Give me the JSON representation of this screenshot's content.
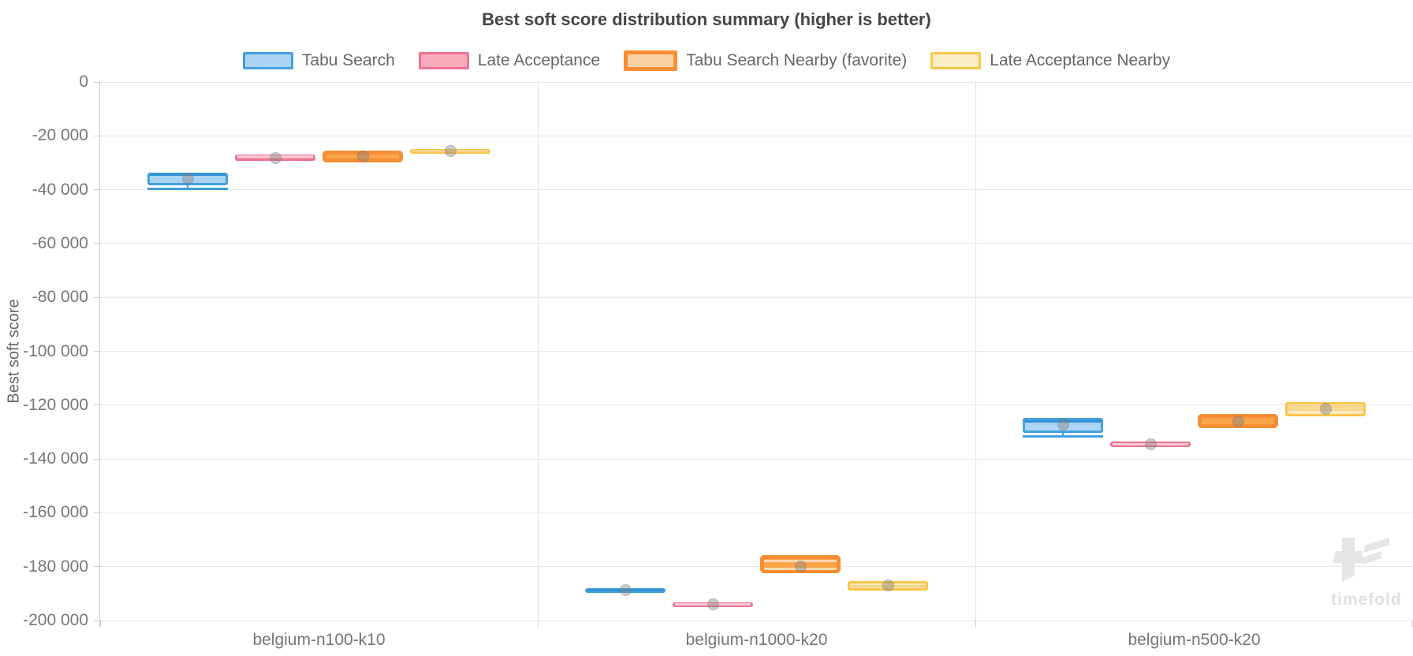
{
  "watermark": {
    "text": "timefold"
  },
  "chart_data": {
    "type": "box",
    "title": "Best soft score distribution summary (higher is better)",
    "ylabel": "Best soft score",
    "ylim": [
      -200000,
      0
    ],
    "grid": true,
    "legend_position": "top",
    "yticks": [
      {
        "value": 0,
        "label": "0"
      },
      {
        "value": -20000,
        "label": "-20 000"
      },
      {
        "value": -40000,
        "label": "-40 000"
      },
      {
        "value": -60000,
        "label": "-60 000"
      },
      {
        "value": -80000,
        "label": "-80 000"
      },
      {
        "value": -100000,
        "label": "-100 000"
      },
      {
        "value": -120000,
        "label": "-120 000"
      },
      {
        "value": -140000,
        "label": "-140 000"
      },
      {
        "value": -160000,
        "label": "-160 000"
      },
      {
        "value": -180000,
        "label": "-180 000"
      },
      {
        "value": -200000,
        "label": "-200 000"
      }
    ],
    "categories": [
      "belgium-n100-k10",
      "belgium-n1000-k20",
      "belgium-n500-k20"
    ],
    "series": [
      {
        "name": "Tabu Search",
        "fill": "#abd4f2",
        "border": "#41a0dd",
        "legend_fill": "#abd4f2",
        "mark_color": "#2e93d6",
        "border_width": 3,
        "favorite": false,
        "boxes": [
          {
            "category": "belgium-n100-k10",
            "q3": -33600,
            "q1": -38500,
            "median": -34400,
            "mean": -35900,
            "min": -39600
          },
          {
            "category": "belgium-n1000-k20",
            "q3": -187900,
            "q1": -189700,
            "median": -188800,
            "mean": -188800
          },
          {
            "category": "belgium-n500-k20",
            "q3": -124800,
            "q1": -130400,
            "median": -126000,
            "mean": -127200,
            "min": -131600
          }
        ]
      },
      {
        "name": "Late Acceptance",
        "fill": "#f9abbd",
        "border": "#ee7290",
        "legend_fill": "#f9abbd",
        "mark_color": "#fbc9d3",
        "border_width": 3,
        "favorite": false,
        "boxes": [
          {
            "category": "belgium-n100-k10",
            "q3": -27000,
            "q1": -29300,
            "mean": -28200,
            "lines": [
              -27600
            ]
          },
          {
            "category": "belgium-n1000-k20",
            "q3": -193200,
            "q1": -194700,
            "mean": -194000,
            "lines": [
              -194000
            ]
          },
          {
            "category": "belgium-n500-k20",
            "q3": -133400,
            "q1": -135500,
            "mean": -134500,
            "lines": [
              -134500
            ]
          }
        ]
      },
      {
        "name": "Tabu Search Nearby (favorite)",
        "fill": "#f9a44b",
        "border": "#f78d33",
        "legend_fill": "#fbd0a2",
        "mark_color": "#fcd8ad",
        "border_width": 5,
        "favorite": true,
        "boxes": [
          {
            "category": "belgium-n100-k10",
            "q3": -25600,
            "q1": -29900,
            "mean": -27800
          },
          {
            "category": "belgium-n1000-k20",
            "q3": -175600,
            "q1": -182300,
            "mean": -180000,
            "lines": [
              -177900,
              -180900
            ]
          },
          {
            "category": "belgium-n500-k20",
            "q3": -123300,
            "q1": -128500,
            "mean": -126000
          }
        ]
      },
      {
        "name": "Late Acceptance Nearby",
        "fill": "#fceabb",
        "border": "#f9c64d",
        "legend_fill": "#fceec5",
        "mark_color": "#f7d488",
        "border_width": 3,
        "favorite": false,
        "boxes": [
          {
            "category": "belgium-n100-k10",
            "q3": -24900,
            "q1": -26500,
            "mean": -25600,
            "lines": [
              -25700
            ]
          },
          {
            "category": "belgium-n1000-k20",
            "q3": -185400,
            "q1": -188900,
            "mean": -187000,
            "lines": [
              -187200
            ]
          },
          {
            "category": "belgium-n500-k20",
            "q3": -118900,
            "q1": -124100,
            "mean": -121300,
            "lines": [
              -120600,
              -121800
            ]
          }
        ]
      }
    ]
  }
}
